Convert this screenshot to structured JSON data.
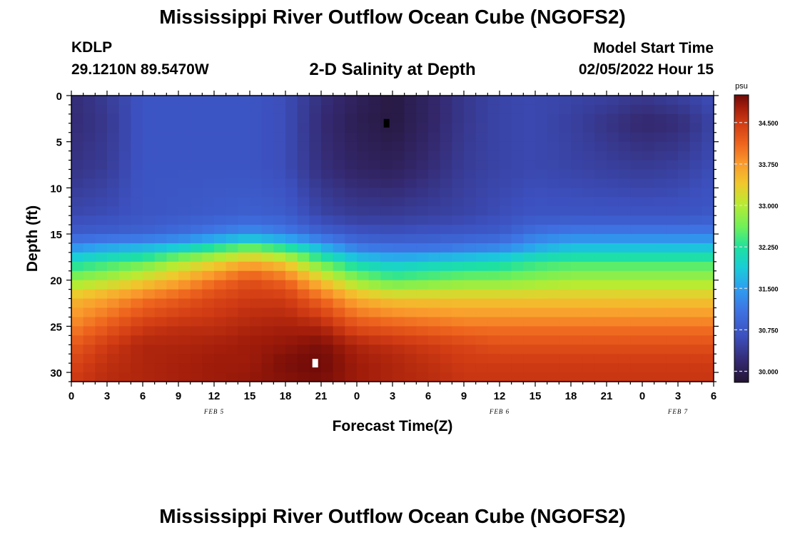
{
  "title": "Mississippi River Outflow Ocean Cube (NGOFS2)",
  "station": "KDLP",
  "coordinates": "29.1210N  89.5470W",
  "subtitle": "2-D Salinity at Depth",
  "model_start_label": "Model Start Time",
  "model_start_value": "02/05/2022 Hour 15",
  "footer_title": "Mississippi River Outflow Ocean Cube (NGOFS2)",
  "chart_data": {
    "type": "heatmap",
    "xlabel": "Forecast Time(Z)",
    "ylabel": "Depth (ft)",
    "xlim": [
      0,
      54
    ],
    "ylim": [
      31,
      0
    ],
    "x_ticks": [
      0,
      3,
      6,
      9,
      12,
      15,
      18,
      21,
      24,
      27,
      30,
      33,
      36,
      39,
      42,
      45,
      48,
      51,
      54
    ],
    "x_tick_labels": [
      "0",
      "3",
      "6",
      "9",
      "12",
      "15",
      "18",
      "21",
      "0",
      "3",
      "6",
      "9",
      "12",
      "15",
      "18",
      "21",
      "0",
      "3",
      "6"
    ],
    "y_ticks": [
      0,
      5,
      10,
      15,
      20,
      25,
      30
    ],
    "y_tick_labels": [
      "0",
      "5",
      "10",
      "15",
      "20",
      "25",
      "30"
    ],
    "date_labels": [
      {
        "x": 12,
        "text": "FEB 5"
      },
      {
        "x": 36,
        "text": "FEB 6"
      },
      {
        "x": 51,
        "text": "FEB 7"
      }
    ],
    "colorbar": {
      "unit": "psu",
      "range": [
        29.8,
        35.0
      ],
      "ticks": [
        30.0,
        30.75,
        31.5,
        32.25,
        33.0,
        33.75,
        34.5
      ],
      "tick_labels": [
        "30.000",
        "30.750",
        "31.500",
        "32.250",
        "33.000",
        "33.750",
        "34.500"
      ]
    },
    "grid": false,
    "profiles": {
      "depths_ft": [
        0,
        3,
        8,
        13,
        15,
        16.5,
        18,
        20,
        22,
        25,
        27,
        29,
        31
      ],
      "times": [
        0,
        3,
        6,
        9,
        12,
        15,
        18,
        21,
        24,
        27,
        30,
        33,
        36,
        39,
        42,
        45,
        48,
        51,
        54
      ],
      "salinity_psu": [
        [
          30.2,
          30.2,
          30.3,
          30.55,
          30.8,
          31.4,
          32.1,
          32.8,
          33.5,
          33.9,
          34.2,
          34.4,
          34.5
        ],
        [
          30.4,
          30.35,
          30.4,
          30.6,
          30.85,
          31.6,
          32.3,
          33.0,
          33.7,
          34.2,
          34.5,
          34.6,
          34.65
        ],
        [
          30.7,
          30.7,
          30.7,
          30.7,
          30.9,
          31.7,
          32.5,
          33.3,
          34.0,
          34.5,
          34.7,
          34.7,
          34.7
        ],
        [
          30.7,
          30.7,
          30.7,
          30.75,
          31.0,
          31.9,
          32.9,
          33.6,
          34.2,
          34.6,
          34.7,
          34.75,
          34.75
        ],
        [
          30.7,
          30.7,
          30.7,
          30.8,
          31.2,
          32.3,
          33.2,
          34.0,
          34.4,
          34.6,
          34.75,
          34.8,
          34.8
        ],
        [
          30.7,
          30.7,
          30.7,
          30.85,
          31.4,
          32.6,
          33.6,
          34.3,
          34.5,
          34.7,
          34.8,
          34.8,
          34.85
        ],
        [
          30.6,
          30.6,
          30.6,
          30.8,
          31.2,
          32.3,
          33.3,
          34.1,
          34.5,
          34.75,
          34.85,
          34.95,
          34.9
        ],
        [
          30.25,
          30.2,
          30.25,
          30.5,
          30.9,
          31.7,
          32.5,
          33.4,
          34.1,
          34.7,
          34.95,
          35.0,
          34.95
        ],
        [
          30.05,
          30.0,
          30.1,
          30.4,
          30.7,
          31.2,
          32.0,
          32.8,
          33.6,
          34.3,
          34.7,
          34.8,
          34.8
        ],
        [
          29.9,
          29.9,
          30.05,
          30.4,
          30.65,
          31.1,
          31.8,
          32.5,
          33.4,
          34.2,
          34.6,
          34.7,
          34.7
        ],
        [
          30.1,
          30.1,
          30.2,
          30.45,
          30.7,
          31.1,
          31.9,
          32.6,
          33.4,
          34.1,
          34.5,
          34.6,
          34.65
        ],
        [
          30.35,
          30.35,
          30.4,
          30.5,
          30.75,
          31.2,
          32.0,
          32.7,
          33.4,
          34.0,
          34.4,
          34.5,
          34.55
        ],
        [
          30.5,
          30.5,
          30.5,
          30.6,
          30.8,
          31.3,
          32.1,
          32.7,
          33.4,
          34.0,
          34.3,
          34.5,
          34.55
        ],
        [
          30.55,
          30.55,
          30.55,
          30.7,
          31.1,
          31.6,
          32.3,
          32.8,
          33.4,
          34.0,
          34.3,
          34.5,
          34.55
        ],
        [
          30.5,
          30.45,
          30.5,
          30.7,
          31.2,
          31.8,
          32.4,
          32.9,
          33.4,
          34.0,
          34.3,
          34.5,
          34.55
        ],
        [
          30.45,
          30.3,
          30.45,
          30.7,
          31.2,
          31.8,
          32.4,
          32.9,
          33.4,
          34.0,
          34.3,
          34.5,
          34.55
        ],
        [
          30.35,
          30.15,
          30.4,
          30.7,
          31.2,
          31.8,
          32.4,
          32.9,
          33.4,
          34.0,
          34.3,
          34.5,
          34.55
        ],
        [
          30.45,
          30.2,
          30.45,
          30.7,
          31.2,
          31.8,
          32.4,
          32.9,
          33.4,
          34.0,
          34.3,
          34.5,
          34.55
        ],
        [
          30.6,
          30.5,
          30.6,
          30.75,
          31.2,
          31.8,
          32.4,
          32.9,
          33.4,
          34.0,
          34.3,
          34.5,
          34.55
        ]
      ]
    },
    "markers": [
      {
        "x": 26.5,
        "y": 3,
        "color": "#000000"
      },
      {
        "x": 20.5,
        "y": 29,
        "color": "#ffffff"
      }
    ]
  }
}
